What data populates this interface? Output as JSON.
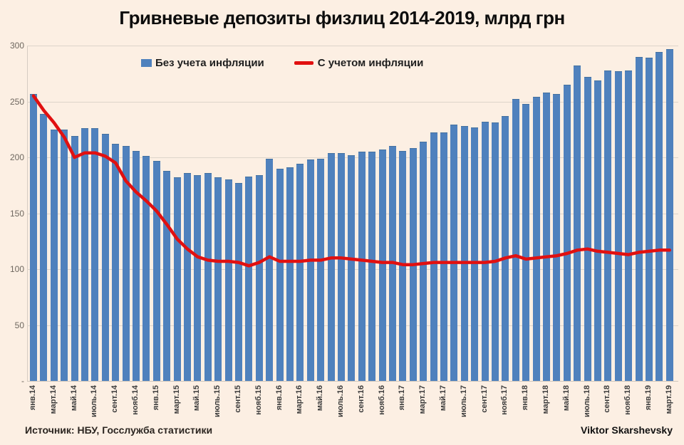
{
  "title": "Гривневые депозиты физлиц 2014-2019, млрд грн",
  "footer": {
    "source": "Источник: НБУ, Госслужба статистики",
    "author": "Viktor Skarshevsky"
  },
  "colors": {
    "background": "#fcefe3",
    "bar": "#4f81bd",
    "line": "#e11010",
    "grid": "#ddd4ca",
    "axis_text": "#6e675f",
    "tick_text": "#3c3c3c"
  },
  "chart_data": {
    "type": "bar",
    "title": "Гривневые депозиты физлиц 2014-2019, млрд грн",
    "months": [
      "янв.14",
      "февр.14",
      "март.14",
      "апр.14",
      "май.14",
      "июнь.14",
      "июль.14",
      "авг.14",
      "сент.14",
      "окт.14",
      "нояб.14",
      "дек.14",
      "янв.15",
      "февр.15",
      "март.15",
      "апр.15",
      "май.15",
      "июнь.15",
      "июль.15",
      "авг.15",
      "сент.15",
      "окт.15",
      "нояб.15",
      "дек.15",
      "янв.16",
      "февр.16",
      "март.16",
      "апр.16",
      "май.16",
      "июнь.16",
      "июль.16",
      "авг.16",
      "сент.16",
      "окт.16",
      "нояб.16",
      "дек.16",
      "янв.17",
      "февр.17",
      "март.17",
      "апр.17",
      "май.17",
      "июнь.17",
      "июль.17",
      "авг.17",
      "сент.17",
      "окт.17",
      "нояб.17",
      "дек.17",
      "янв.18",
      "февр.18",
      "март.18",
      "апр.18",
      "май.18",
      "июнь.18",
      "июль.18",
      "авг.18",
      "сент.18",
      "окт.18",
      "нояб.18",
      "дек.18",
      "янв.19",
      "февр.19",
      "март.19"
    ],
    "x_tick_labels": [
      "янв.14",
      "март.14",
      "май.14",
      "июль.14",
      "сент.14",
      "нояб.14",
      "янв.15",
      "март.15",
      "май.15",
      "июль.15",
      "сент.15",
      "нояб.15",
      "янв.16",
      "март.16",
      "май.16",
      "июль.16",
      "сент.16",
      "нояб.16",
      "янв.17",
      "март.17",
      "май.17",
      "июль.17",
      "сент.17",
      "нояб.17",
      "янв.18",
      "март.18",
      "май.18",
      "июль.18",
      "сент.18",
      "нояб.18",
      "янв.19",
      "март.19"
    ],
    "series": [
      {
        "name": "Без учета инфляции",
        "type": "bar",
        "color": "#4f81bd",
        "values": [
          257,
          239,
          225,
          225,
          219,
          226,
          226,
          221,
          212,
          210,
          206,
          201,
          197,
          188,
          182,
          186,
          184,
          186,
          182,
          180,
          177,
          183,
          184,
          199,
          190,
          191,
          194,
          198,
          199,
          204,
          204,
          202,
          205,
          205,
          207,
          210,
          206,
          208,
          214,
          222,
          222,
          229,
          228,
          227,
          232,
          231,
          237,
          252,
          248,
          254,
          258,
          257,
          265,
          282,
          272,
          269,
          278,
          277,
          278,
          290,
          289,
          294,
          297
        ]
      },
      {
        "name": "С учетом инфляции",
        "type": "line",
        "color": "#e11010",
        "values": [
          255,
          242,
          231,
          218,
          200,
          204,
          204,
          201,
          195,
          179,
          169,
          161,
          152,
          140,
          127,
          118,
          111,
          108,
          107,
          107,
          106,
          103,
          106,
          111,
          107,
          107,
          107,
          108,
          108,
          110,
          110,
          109,
          108,
          107,
          106,
          106,
          104,
          104,
          105,
          106,
          106,
          106,
          106,
          106,
          106,
          107,
          110,
          112,
          109,
          110,
          111,
          112,
          114,
          117,
          118,
          116,
          115,
          114,
          113,
          115,
          116,
          117,
          117
        ]
      }
    ],
    "ylim": [
      0,
      300
    ],
    "y_ticks": [
      300,
      250,
      200,
      150,
      100,
      50,
      "-"
    ],
    "y_tick_values": [
      300,
      250,
      200,
      150,
      100,
      50,
      0
    ],
    "grid": true,
    "legend_position": "top-inside"
  }
}
